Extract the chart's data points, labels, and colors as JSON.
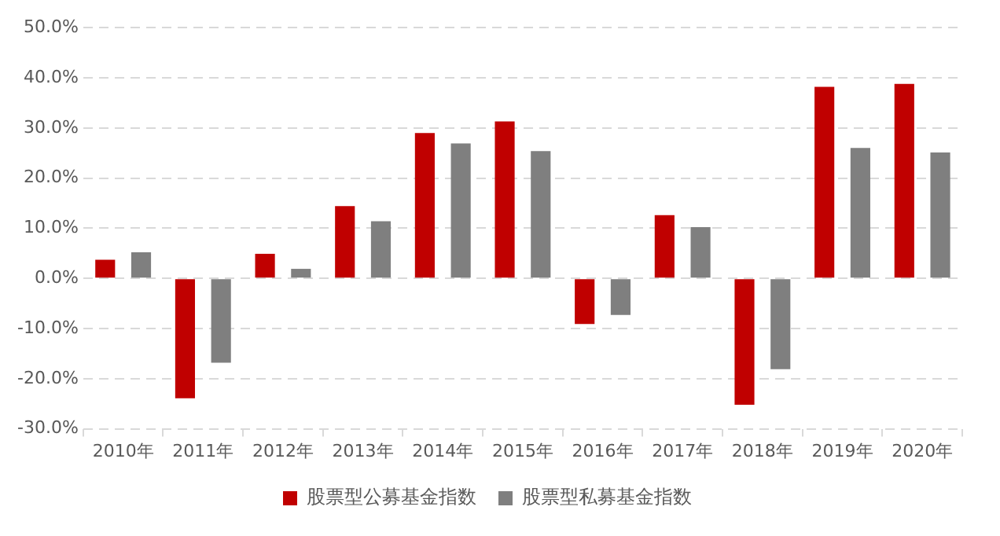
{
  "chart_data": {
    "type": "bar",
    "categories": [
      "2010年",
      "2011年",
      "2012年",
      "2013年",
      "2014年",
      "2015年",
      "2016年",
      "2017年",
      "2018年",
      "2019年",
      "2020年"
    ],
    "series": [
      {
        "name": "股票型公募基金指数",
        "color": "#c00000",
        "values": [
          3.7,
          -23.9,
          4.9,
          14.4,
          29.0,
          31.3,
          -9.1,
          12.6,
          -25.2,
          38.2,
          38.8
        ]
      },
      {
        "name": "股票型私募基金指数",
        "color": "#7f7f7f",
        "values": [
          5.2,
          -16.8,
          1.9,
          11.4,
          26.9,
          25.4,
          -7.3,
          10.2,
          -18.1,
          26.0,
          25.1
        ]
      }
    ],
    "ylim": [
      -30,
      50
    ],
    "yticks": [
      {
        "value": -30,
        "label": "-30.0%"
      },
      {
        "value": -20,
        "label": "-20.0%"
      },
      {
        "value": -10,
        "label": "-10.0%"
      },
      {
        "value": 0,
        "label": "0.0%"
      },
      {
        "value": 10,
        "label": "10.0%"
      },
      {
        "value": 20,
        "label": "20.0%"
      },
      {
        "value": 30,
        "label": "30.0%"
      },
      {
        "value": 40,
        "label": "40.0%"
      },
      {
        "value": 50,
        "label": "50.0%"
      }
    ],
    "grid": "y",
    "legend": "bottom"
  }
}
